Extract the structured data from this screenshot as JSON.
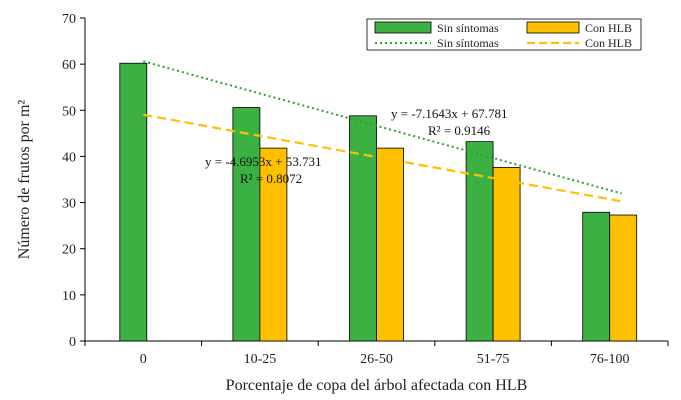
{
  "chart_data": {
    "type": "bar",
    "categories": [
      "0",
      "10-25",
      "26-50",
      "51-75",
      "76-100"
    ],
    "series": [
      {
        "name": "Sin síntomas",
        "values": [
          60.2,
          50.6,
          48.8,
          43.2,
          27.9
        ],
        "color": "#3cb043"
      },
      {
        "name": "Con HLB",
        "values": [
          null,
          41.8,
          41.8,
          37.6,
          27.3
        ],
        "color": "#ffc000"
      }
    ],
    "trendlines": [
      {
        "name": "Sin síntomas",
        "style": "dotted",
        "color": "#2ca02c",
        "slope": -7.1643,
        "intercept": 67.781,
        "equation": "y = -7.1643x + 67.781",
        "r2": "R² = 0.9146"
      },
      {
        "name": "Con HLB",
        "style": "dashed",
        "color": "#ffc000",
        "slope": -4.6953,
        "intercept": 53.731,
        "equation": "y = -4.6953x + 53.731",
        "r2": "R² = 0.8072"
      }
    ],
    "xlabel": "Porcentaje de copa del árbol afectada con HLB",
    "ylabel": "Número de frutos por m²",
    "ylim": [
      0,
      70
    ],
    "yticks": [
      0,
      10,
      20,
      30,
      40,
      50,
      60,
      70
    ],
    "grid": false,
    "legend_position": "top-right"
  }
}
